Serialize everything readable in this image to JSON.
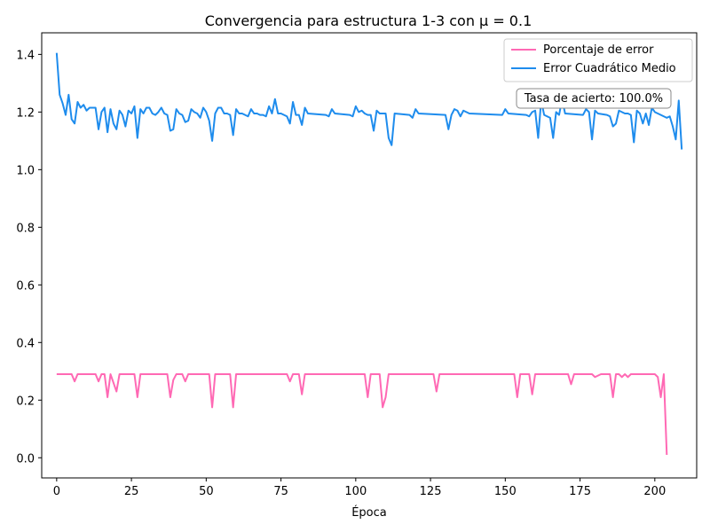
{
  "chart_data": {
    "type": "line",
    "title": "Convergencia para estructura 1-3 con μ = 0.1",
    "xlabel": "Época",
    "ylabel": "",
    "xlim": [
      -5,
      214
    ],
    "ylim": [
      -0.07,
      1.475
    ],
    "xticks": [
      0,
      25,
      50,
      75,
      100,
      125,
      150,
      175,
      200
    ],
    "yticks": [
      0.0,
      0.2,
      0.4,
      0.6,
      0.8,
      1.0,
      1.2,
      1.4
    ],
    "ytick_labels": [
      "0.0",
      "0.2",
      "0.4",
      "0.6",
      "0.8",
      "1.0",
      "1.2",
      "1.4"
    ],
    "grid": false,
    "legend_position": "top-right",
    "annotation": "Tasa de acierto: 100.0%",
    "series": [
      {
        "name": "Porcentaje de error",
        "color": "#ff69b4",
        "points": [
          [
            0,
            0.29
          ],
          [
            5,
            0.29
          ],
          [
            6,
            0.265
          ],
          [
            7,
            0.29
          ],
          [
            13,
            0.29
          ],
          [
            14,
            0.265
          ],
          [
            15,
            0.29
          ],
          [
            16,
            0.29
          ],
          [
            17,
            0.21
          ],
          [
            18,
            0.29
          ],
          [
            20,
            0.23
          ],
          [
            21,
            0.29
          ],
          [
            26,
            0.29
          ],
          [
            27,
            0.21
          ],
          [
            28,
            0.29
          ],
          [
            37,
            0.29
          ],
          [
            38,
            0.21
          ],
          [
            39,
            0.27
          ],
          [
            40,
            0.29
          ],
          [
            42,
            0.29
          ],
          [
            43,
            0.265
          ],
          [
            44,
            0.29
          ],
          [
            51,
            0.29
          ],
          [
            52,
            0.175
          ],
          [
            53,
            0.29
          ],
          [
            58,
            0.29
          ],
          [
            59,
            0.175
          ],
          [
            60,
            0.29
          ],
          [
            77,
            0.29
          ],
          [
            78,
            0.265
          ],
          [
            79,
            0.29
          ],
          [
            81,
            0.29
          ],
          [
            82,
            0.22
          ],
          [
            83,
            0.29
          ],
          [
            103,
            0.29
          ],
          [
            104,
            0.21
          ],
          [
            105,
            0.29
          ],
          [
            108,
            0.29
          ],
          [
            109,
            0.175
          ],
          [
            110,
            0.21
          ],
          [
            111,
            0.29
          ],
          [
            126,
            0.29
          ],
          [
            127,
            0.23
          ],
          [
            128,
            0.29
          ],
          [
            153,
            0.29
          ],
          [
            154,
            0.21
          ],
          [
            155,
            0.29
          ],
          [
            158,
            0.29
          ],
          [
            159,
            0.22
          ],
          [
            160,
            0.29
          ],
          [
            171,
            0.29
          ],
          [
            172,
            0.255
          ],
          [
            173,
            0.29
          ],
          [
            179,
            0.29
          ],
          [
            180,
            0.28
          ],
          [
            181,
            0.285
          ],
          [
            182,
            0.29
          ],
          [
            185,
            0.29
          ],
          [
            186,
            0.21
          ],
          [
            187,
            0.29
          ],
          [
            188,
            0.29
          ],
          [
            189,
            0.28
          ],
          [
            190,
            0.29
          ],
          [
            191,
            0.28
          ],
          [
            192,
            0.29
          ],
          [
            200,
            0.29
          ],
          [
            201,
            0.28
          ],
          [
            202,
            0.21
          ],
          [
            203,
            0.29
          ],
          [
            204,
            0.01
          ]
        ]
      },
      {
        "name": "Error Cuadrático Medio",
        "color": "#1e8ced",
        "points": [
          [
            0,
            1.405
          ],
          [
            1,
            1.26
          ],
          [
            2,
            1.23
          ],
          [
            3,
            1.19
          ],
          [
            4,
            1.26
          ],
          [
            5,
            1.175
          ],
          [
            6,
            1.16
          ],
          [
            7,
            1.235
          ],
          [
            8,
            1.215
          ],
          [
            9,
            1.225
          ],
          [
            10,
            1.205
          ],
          [
            11,
            1.215
          ],
          [
            12,
            1.215
          ],
          [
            13,
            1.215
          ],
          [
            14,
            1.14
          ],
          [
            15,
            1.2
          ],
          [
            16,
            1.215
          ],
          [
            17,
            1.13
          ],
          [
            18,
            1.21
          ],
          [
            19,
            1.16
          ],
          [
            20,
            1.14
          ],
          [
            21,
            1.205
          ],
          [
            22,
            1.19
          ],
          [
            23,
            1.15
          ],
          [
            24,
            1.205
          ],
          [
            25,
            1.195
          ],
          [
            26,
            1.22
          ],
          [
            27,
            1.11
          ],
          [
            28,
            1.21
          ],
          [
            29,
            1.195
          ],
          [
            30,
            1.215
          ],
          [
            31,
            1.215
          ],
          [
            32,
            1.195
          ],
          [
            33,
            1.19
          ],
          [
            34,
            1.2
          ],
          [
            35,
            1.215
          ],
          [
            36,
            1.195
          ],
          [
            37,
            1.19
          ],
          [
            38,
            1.135
          ],
          [
            39,
            1.14
          ],
          [
            40,
            1.21
          ],
          [
            41,
            1.195
          ],
          [
            42,
            1.19
          ],
          [
            43,
            1.165
          ],
          [
            44,
            1.17
          ],
          [
            45,
            1.21
          ],
          [
            46,
            1.2
          ],
          [
            47,
            1.195
          ],
          [
            48,
            1.18
          ],
          [
            49,
            1.215
          ],
          [
            50,
            1.2
          ],
          [
            51,
            1.17
          ],
          [
            52,
            1.1
          ],
          [
            53,
            1.195
          ],
          [
            54,
            1.215
          ],
          [
            55,
            1.215
          ],
          [
            56,
            1.195
          ],
          [
            57,
            1.195
          ],
          [
            58,
            1.19
          ],
          [
            59,
            1.12
          ],
          [
            60,
            1.21
          ],
          [
            61,
            1.195
          ],
          [
            62,
            1.195
          ],
          [
            63,
            1.19
          ],
          [
            64,
            1.185
          ],
          [
            65,
            1.21
          ],
          [
            66,
            1.195
          ],
          [
            67,
            1.195
          ],
          [
            68,
            1.19
          ],
          [
            69,
            1.19
          ],
          [
            70,
            1.185
          ],
          [
            71,
            1.22
          ],
          [
            72,
            1.195
          ],
          [
            73,
            1.245
          ],
          [
            74,
            1.195
          ],
          [
            75,
            1.195
          ],
          [
            76,
            1.19
          ],
          [
            77,
            1.185
          ],
          [
            78,
            1.16
          ],
          [
            79,
            1.235
          ],
          [
            80,
            1.19
          ],
          [
            81,
            1.19
          ],
          [
            82,
            1.155
          ],
          [
            83,
            1.215
          ],
          [
            84,
            1.195
          ],
          [
            90,
            1.19
          ],
          [
            91,
            1.185
          ],
          [
            92,
            1.21
          ],
          [
            93,
            1.195
          ],
          [
            98,
            1.19
          ],
          [
            99,
            1.185
          ],
          [
            100,
            1.22
          ],
          [
            101,
            1.2
          ],
          [
            102,
            1.205
          ],
          [
            103,
            1.195
          ],
          [
            104,
            1.19
          ],
          [
            105,
            1.19
          ],
          [
            106,
            1.135
          ],
          [
            107,
            1.205
          ],
          [
            108,
            1.195
          ],
          [
            109,
            1.195
          ],
          [
            110,
            1.195
          ],
          [
            111,
            1.11
          ],
          [
            112,
            1.085
          ],
          [
            113,
            1.195
          ],
          [
            118,
            1.19
          ],
          [
            119,
            1.18
          ],
          [
            120,
            1.21
          ],
          [
            121,
            1.195
          ],
          [
            130,
            1.19
          ],
          [
            131,
            1.14
          ],
          [
            132,
            1.19
          ],
          [
            133,
            1.21
          ],
          [
            134,
            1.205
          ],
          [
            135,
            1.185
          ],
          [
            136,
            1.205
          ],
          [
            137,
            1.2
          ],
          [
            138,
            1.195
          ],
          [
            149,
            1.19
          ],
          [
            150,
            1.21
          ],
          [
            151,
            1.195
          ],
          [
            157,
            1.19
          ],
          [
            158,
            1.185
          ],
          [
            159,
            1.2
          ],
          [
            160,
            1.205
          ],
          [
            161,
            1.11
          ],
          [
            162,
            1.24
          ],
          [
            163,
            1.19
          ],
          [
            164,
            1.185
          ],
          [
            165,
            1.18
          ],
          [
            166,
            1.11
          ],
          [
            167,
            1.2
          ],
          [
            168,
            1.19
          ],
          [
            169,
            1.245
          ],
          [
            170,
            1.195
          ],
          [
            176,
            1.19
          ],
          [
            177,
            1.21
          ],
          [
            178,
            1.2
          ],
          [
            179,
            1.105
          ],
          [
            180,
            1.205
          ],
          [
            181,
            1.195
          ],
          [
            184,
            1.19
          ],
          [
            185,
            1.185
          ],
          [
            186,
            1.15
          ],
          [
            187,
            1.16
          ],
          [
            188,
            1.205
          ],
          [
            189,
            1.2
          ],
          [
            190,
            1.195
          ],
          [
            191,
            1.195
          ],
          [
            192,
            1.19
          ],
          [
            193,
            1.095
          ],
          [
            194,
            1.205
          ],
          [
            195,
            1.195
          ],
          [
            196,
            1.16
          ],
          [
            197,
            1.195
          ],
          [
            198,
            1.155
          ],
          [
            199,
            1.215
          ],
          [
            200,
            1.2
          ],
          [
            201,
            1.195
          ],
          [
            202,
            1.19
          ],
          [
            203,
            1.185
          ],
          [
            204,
            1.18
          ],
          [
            205,
            1.185
          ],
          [
            206,
            1.15
          ],
          [
            207,
            1.105
          ],
          [
            208,
            1.24
          ],
          [
            209,
            1.07
          ]
        ]
      }
    ]
  }
}
